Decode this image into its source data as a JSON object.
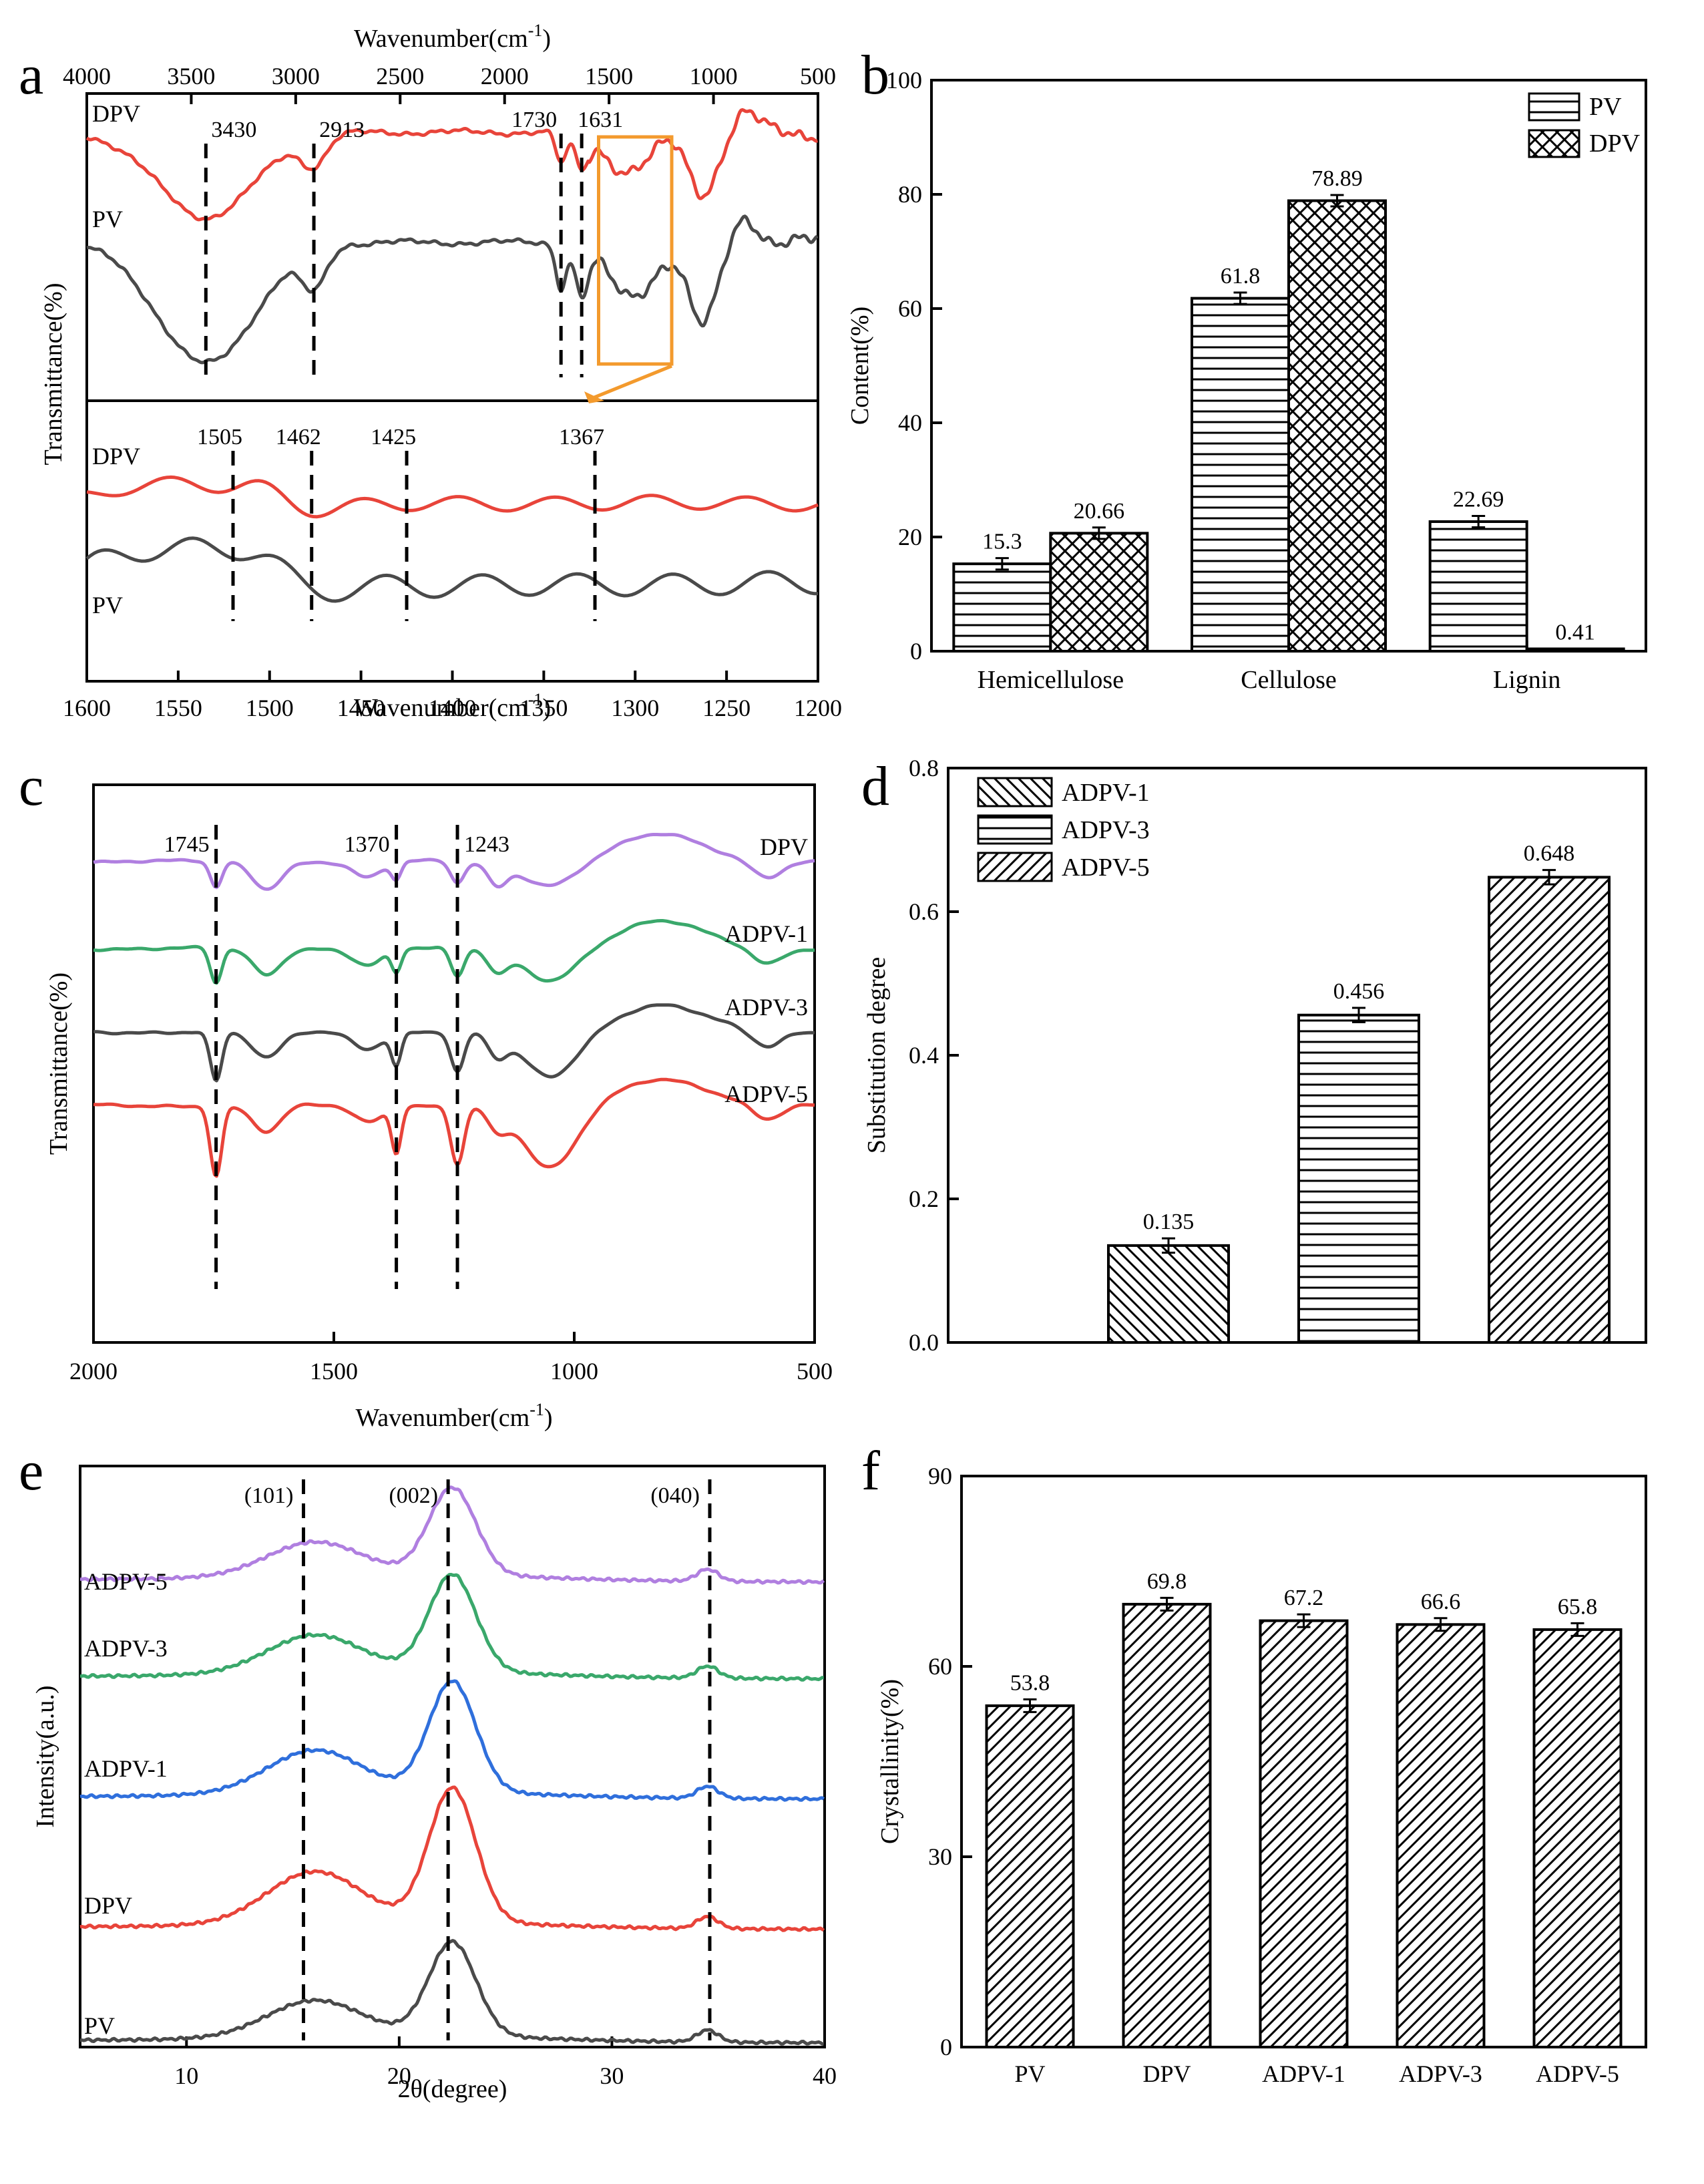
{
  "chart_data": [
    {
      "panel": "a",
      "type": "line",
      "title": "",
      "top_axis": {
        "label": "Wavenumber(cm-1)",
        "ticks": [
          "4000",
          "3500",
          "3000",
          "2500",
          "2000",
          "1500",
          "1000",
          "500"
        ],
        "range": [
          4000,
          500
        ]
      },
      "bottom_axis": {
        "label": "Wavenumber(cm-1)",
        "ticks": [
          "1600",
          "1550",
          "1500",
          "1450",
          "1400",
          "1350",
          "1300",
          "1250",
          "1200"
        ],
        "range": [
          1600,
          1200
        ]
      },
      "ylabel": "Transmittance(%)",
      "series_upper": [
        "DPV",
        "PV"
      ],
      "series_lower": [
        "DPV",
        "PV"
      ],
      "peaks_upper": [
        "3430",
        "2913",
        "1730",
        "1631"
      ],
      "peaks_lower": [
        "1505",
        "1462",
        "1425",
        "1367"
      ],
      "colors": {
        "DPV": "#e8443a",
        "PV": "#4a4a4a",
        "box": "#f39a2d"
      }
    },
    {
      "panel": "b",
      "type": "bar",
      "categories": [
        "Hemicellulose",
        "Cellulose",
        "Lignin"
      ],
      "series": [
        {
          "name": "PV",
          "values": [
            15.3,
            61.8,
            22.69
          ],
          "labels": [
            "15.3",
            "61.8",
            "22.69"
          ],
          "errors": [
            1.0,
            1.0,
            1.0
          ]
        },
        {
          "name": "DPV",
          "values": [
            20.66,
            78.89,
            0.41
          ],
          "labels": [
            "20.66",
            "78.89",
            "0.41"
          ],
          "errors": [
            1.0,
            1.0,
            0.0
          ]
        }
      ],
      "ylabel": "Content(%)",
      "ylim": [
        0,
        100
      ],
      "yticks": [
        "0",
        "20",
        "40",
        "60",
        "80",
        "100"
      ],
      "legend": "top-right"
    },
    {
      "panel": "c",
      "type": "line",
      "xlabel": "Wavenumber(cm-1)",
      "ylabel": "Transmittance(%)",
      "xticks": [
        "2000",
        "1500",
        "1000",
        "500"
      ],
      "xlim": [
        2000,
        500
      ],
      "series": [
        {
          "name": "DPV",
          "color": "#b07fe0"
        },
        {
          "name": "ADPV-1",
          "color": "#3aa86b"
        },
        {
          "name": "ADPV-3",
          "color": "#4a4a4a"
        },
        {
          "name": "ADPV-5",
          "color": "#e8443a"
        }
      ],
      "peaks": [
        "1745",
        "1370",
        "1243"
      ]
    },
    {
      "panel": "d",
      "type": "bar",
      "categories": [
        "ADPV-1",
        "ADPV-3",
        "ADPV-5"
      ],
      "values": [
        0.135,
        0.456,
        0.648
      ],
      "labels": [
        "0.135",
        "0.456",
        "0.648"
      ],
      "errors": [
        0.01,
        0.01,
        0.01
      ],
      "ylabel": "Substitution degree",
      "ylim": [
        0,
        0.8
      ],
      "yticks": [
        "0.0",
        "0.2",
        "0.4",
        "0.6",
        "0.8"
      ],
      "legend": "top-left"
    },
    {
      "panel": "e",
      "type": "line",
      "xlabel": "2θ(degree)",
      "ylabel": "Intensity(a.u.)",
      "xticks": [
        "10",
        "20",
        "30",
        "40"
      ],
      "xlim": [
        5,
        40
      ],
      "series": [
        {
          "name": "ADPV-5",
          "color": "#b07fe0"
        },
        {
          "name": "ADPV-3",
          "color": "#3aa86b"
        },
        {
          "name": "ADPV-1",
          "color": "#2f6fdc"
        },
        {
          "name": "DPV",
          "color": "#e8443a"
        },
        {
          "name": "PV",
          "color": "#4a4a4a"
        }
      ],
      "peaks": [
        "(101)",
        "(002)",
        "(040)"
      ]
    },
    {
      "panel": "f",
      "type": "bar",
      "categories": [
        "PV",
        "DPV",
        "ADPV-1",
        "ADPV-3",
        "ADPV-5"
      ],
      "values": [
        53.8,
        69.8,
        67.2,
        66.6,
        65.8
      ],
      "labels": [
        "53.8",
        "69.8",
        "67.2",
        "66.6",
        "65.8"
      ],
      "errors": [
        1.0,
        1.0,
        1.0,
        1.0,
        1.0
      ],
      "ylabel": "Crystallinity(%)",
      "ylim": [
        0,
        90
      ],
      "yticks": [
        "0",
        "30",
        "60",
        "90"
      ]
    }
  ],
  "panel_letters": [
    "a",
    "b",
    "c",
    "d",
    "e",
    "f"
  ]
}
